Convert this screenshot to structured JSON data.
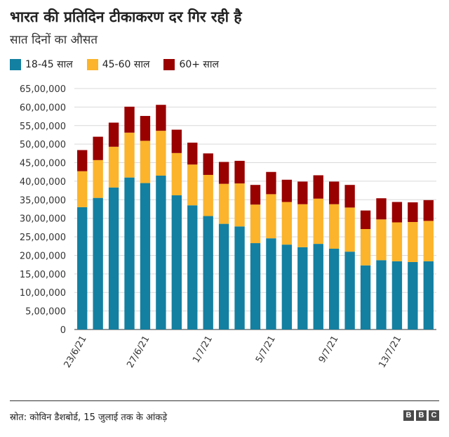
{
  "header": {
    "title": "भारत की प्रतिदिन टीकाकरण दर गिर रही है",
    "subtitle": "सात दिनों का औसत"
  },
  "legend": [
    {
      "label": "18-45 साल",
      "color": "#1380a1"
    },
    {
      "label": "45-60 साल",
      "color": "#fbb42b"
    },
    {
      "label": "60+ साल",
      "color": "#990000"
    }
  ],
  "chart_data": {
    "type": "bar",
    "stacked": true,
    "title": "भारत की प्रतिदिन टीकाकरण दर गिर रही है",
    "subtitle": "सात दिनों का औसत",
    "ylim": [
      0,
      6500000
    ],
    "yticks": [
      0,
      500000,
      1000000,
      1500000,
      2000000,
      2500000,
      3000000,
      3500000,
      4000000,
      4500000,
      5000000,
      5500000,
      6000000,
      6500000
    ],
    "ytick_labels": [
      "0",
      "5,00,000",
      "10,00,000",
      "15,00,000",
      "20,00,000",
      "25,00,000",
      "30,00,000",
      "35,00,000",
      "40,00,000",
      "45,00,000",
      "50,00,000",
      "55,00,000",
      "60,00,000",
      "65,00,000"
    ],
    "grid": "horizontal",
    "legend_position": "top-left",
    "categories": [
      "23/6/21",
      "24/6/21",
      "25/6/21",
      "26/6/21",
      "27/6/21",
      "28/6/21",
      "29/6/21",
      "30/6/21",
      "1/7/21",
      "2/7/21",
      "3/7/21",
      "4/7/21",
      "5/7/21",
      "6/7/21",
      "7/7/21",
      "8/7/21",
      "9/7/21",
      "10/7/21",
      "11/7/21",
      "12/7/21",
      "13/7/21",
      "14/7/21",
      "15/7/21"
    ],
    "xtick_labels_shown": [
      "23/6/21",
      "27/6/21",
      "1/7/21",
      "5/7/21",
      "9/7/21",
      "13/7/21"
    ],
    "series": [
      {
        "name": "18-45 साल",
        "color": "#1380a1",
        "values": [
          3300000,
          3550000,
          3830000,
          4100000,
          3950000,
          4150000,
          3620000,
          3350000,
          3060000,
          2850000,
          2780000,
          2330000,
          2460000,
          2290000,
          2220000,
          2310000,
          2180000,
          2100000,
          1730000,
          1870000,
          1840000,
          1820000,
          1840000
        ]
      },
      {
        "name": "45-60 साल",
        "color": "#fbb42b",
        "values": [
          970000,
          1020000,
          1100000,
          1210000,
          1140000,
          1210000,
          1140000,
          1100000,
          1110000,
          1080000,
          1160000,
          1040000,
          1190000,
          1150000,
          1160000,
          1220000,
          1200000,
          1190000,
          980000,
          1100000,
          1050000,
          1080000,
          1090000
        ]
      },
      {
        "name": "60+ साल",
        "color": "#990000",
        "values": [
          570000,
          630000,
          650000,
          700000,
          670000,
          700000,
          630000,
          590000,
          580000,
          590000,
          610000,
          530000,
          600000,
          600000,
          610000,
          630000,
          610000,
          610000,
          500000,
          570000,
          550000,
          530000,
          560000
        ]
      }
    ]
  },
  "footer": {
    "source": "स्रोत: कोविन डैशबोर्ड, 15 जुलाई तक के आंकड़े",
    "logo": [
      "B",
      "B",
      "C"
    ]
  }
}
